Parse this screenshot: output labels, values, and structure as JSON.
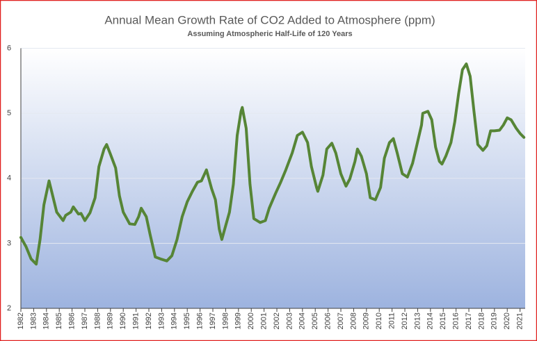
{
  "chart_data": {
    "type": "line",
    "title": "Annual Mean Growth Rate of CO2 Added to Atmosphere (ppm)",
    "subtitle": "Assuming Atmospheric Half-Life of 120 Years",
    "color": "#568536",
    "x": [
      1982.0,
      1982.4,
      1982.8,
      1983.2,
      1983.5,
      1983.8,
      1984.2,
      1984.4,
      1984.8,
      1985.3,
      1985.5,
      1985.9,
      1986.1,
      1986.5,
      1986.7,
      1987.0,
      1987.4,
      1987.8,
      1988.1,
      1988.5,
      1988.7,
      1989.0,
      1989.4,
      1989.7,
      1990.0,
      1990.5,
      1990.9,
      1991.2,
      1991.4,
      1991.8,
      1992.1,
      1992.5,
      1992.9,
      1993.4,
      1993.8,
      1994.2,
      1994.6,
      1995.0,
      1995.4,
      1995.8,
      1996.1,
      1996.5,
      1996.9,
      1997.2,
      1997.5,
      1997.7,
      1998.0,
      1998.3,
      1998.6,
      1998.9,
      1999.2,
      1999.3,
      1999.6,
      1999.9,
      2000.2,
      2000.7,
      2001.1,
      2001.4,
      2001.9,
      2002.3,
      2002.7,
      2003.2,
      2003.6,
      2004.0,
      2004.4,
      2004.7,
      2005.1,
      2005.2,
      2005.6,
      2005.9,
      2006.3,
      2006.6,
      2007.0,
      2007.4,
      2007.7,
      2008.1,
      2008.3,
      2008.6,
      2009.0,
      2009.3,
      2009.7,
      2010.1,
      2010.4,
      2010.8,
      2011.1,
      2011.4,
      2011.8,
      2012.2,
      2012.6,
      2012.9,
      2013.3,
      2013.4,
      2013.8,
      2014.1,
      2014.4,
      2014.7,
      2014.9,
      2015.2,
      2015.6,
      2015.9,
      2016.2,
      2016.5,
      2016.8,
      2017.1,
      2017.4,
      2017.7,
      2018.1,
      2018.4,
      2018.7,
      2019.0,
      2019.4,
      2019.7,
      2020.0,
      2020.3,
      2020.7,
      2021.0,
      2021.3
    ],
    "values": [
      3.09,
      2.95,
      2.76,
      2.68,
      3.06,
      3.59,
      3.96,
      3.8,
      3.48,
      3.35,
      3.43,
      3.48,
      3.56,
      3.45,
      3.46,
      3.35,
      3.47,
      3.7,
      4.18,
      4.45,
      4.52,
      4.37,
      4.16,
      3.73,
      3.48,
      3.3,
      3.29,
      3.41,
      3.54,
      3.41,
      3.13,
      2.79,
      2.76,
      2.73,
      2.81,
      3.06,
      3.41,
      3.64,
      3.8,
      3.94,
      3.96,
      4.13,
      3.84,
      3.67,
      3.22,
      3.06,
      3.27,
      3.48,
      3.91,
      4.66,
      5.03,
      5.09,
      4.77,
      3.91,
      3.38,
      3.32,
      3.35,
      3.54,
      3.77,
      3.94,
      4.13,
      4.39,
      4.66,
      4.71,
      4.55,
      4.18,
      3.86,
      3.8,
      4.05,
      4.45,
      4.54,
      4.39,
      4.07,
      3.88,
      3.99,
      4.26,
      4.45,
      4.34,
      4.07,
      3.7,
      3.67,
      3.86,
      4.31,
      4.55,
      4.61,
      4.39,
      4.07,
      4.02,
      4.23,
      4.48,
      4.82,
      5.0,
      5.03,
      4.9,
      4.48,
      4.26,
      4.22,
      4.34,
      4.55,
      4.87,
      5.3,
      5.67,
      5.76,
      5.57,
      5.03,
      4.52,
      4.43,
      4.5,
      4.73,
      4.73,
      4.74,
      4.82,
      4.93,
      4.9,
      4.77,
      4.69,
      4.63
    ],
    "xlim": [
      1982,
      2021.4
    ],
    "xticks": [
      1982,
      1983,
      1984,
      1985,
      1986,
      1987,
      1988,
      1989,
      1990,
      1991,
      1992,
      1993,
      1994,
      1995,
      1996,
      1997,
      1998,
      1999,
      2000,
      2001,
      2002,
      2003,
      2004,
      2005,
      2006,
      2007,
      2008,
      2009,
      2010,
      2011,
      2012,
      2013,
      2014,
      2015,
      2016,
      2017,
      2018,
      2019,
      2020,
      2021
    ],
    "ylim": [
      2,
      6
    ],
    "yticks": [
      2,
      3,
      4,
      5,
      6
    ],
    "grid": true
  }
}
